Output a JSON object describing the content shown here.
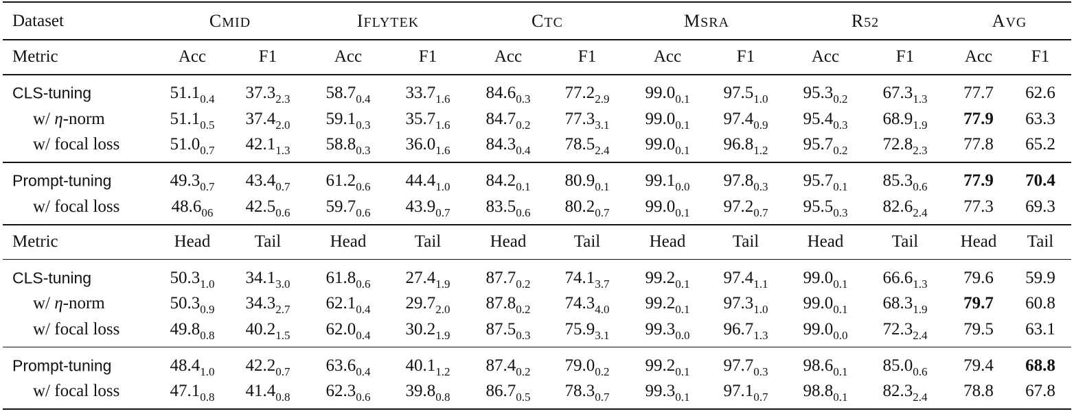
{
  "header": [
    "Dataset",
    "CMID",
    "IFLYTEK",
    "CTC",
    "MSRA",
    "R52",
    "AVG"
  ],
  "sections": [
    {
      "metric": [
        "Metric",
        "Acc",
        "F1",
        "Acc",
        "F1",
        "Acc",
        "F1",
        "Acc",
        "F1",
        "Acc",
        "F1",
        "Acc",
        "F1"
      ],
      "groups": [
        [
          {
            "label": "CLS-tuning",
            "cells": [
              [
                "51.1",
                "0.4"
              ],
              [
                "37.3",
                "2.3"
              ],
              [
                "58.7",
                "0.4"
              ],
              [
                "33.7",
                "1.6"
              ],
              [
                "84.6",
                "0.3"
              ],
              [
                "77.2",
                "2.9"
              ],
              [
                "99.0",
                "0.1"
              ],
              [
                "97.5",
                "1.0"
              ],
              [
                "95.3",
                "0.2"
              ],
              [
                "67.3",
                "1.3"
              ],
              [
                "77.7"
              ],
              [
                "62.6"
              ]
            ],
            "bold": []
          },
          {
            "label": "w/ η-norm",
            "cells": [
              [
                "51.1",
                "0.5"
              ],
              [
                "37.4",
                "2.0"
              ],
              [
                "59.1",
                "0.3"
              ],
              [
                "35.7",
                "1.6"
              ],
              [
                "84.7",
                "0.2"
              ],
              [
                "77.3",
                "3.1"
              ],
              [
                "99.0",
                "0.1"
              ],
              [
                "97.4",
                "0.9"
              ],
              [
                "95.4",
                "0.3"
              ],
              [
                "68.9",
                "1.9"
              ],
              [
                "77.9"
              ],
              [
                "63.3"
              ]
            ],
            "bold": [
              10
            ]
          },
          {
            "label": "w/ focal loss",
            "cells": [
              [
                "51.0",
                "0.7"
              ],
              [
                "42.1",
                "1.3"
              ],
              [
                "58.8",
                "0.3"
              ],
              [
                "36.0",
                "1.6"
              ],
              [
                "84.3",
                "0.4"
              ],
              [
                "78.5",
                "2.4"
              ],
              [
                "99.0",
                "0.1"
              ],
              [
                "96.8",
                "1.2"
              ],
              [
                "95.7",
                "0.2"
              ],
              [
                "72.8",
                "2.3"
              ],
              [
                "77.8"
              ],
              [
                "65.2"
              ]
            ],
            "bold": []
          }
        ],
        [
          {
            "label": "Prompt-tuning",
            "cells": [
              [
                "49.3",
                "0.7"
              ],
              [
                "43.4",
                "0.7"
              ],
              [
                "61.2",
                "0.6"
              ],
              [
                "44.4",
                "1.0"
              ],
              [
                "84.2",
                "0.1"
              ],
              [
                "80.9",
                "0.1"
              ],
              [
                "99.1",
                "0.0"
              ],
              [
                "97.8",
                "0.3"
              ],
              [
                "95.7",
                "0.1"
              ],
              [
                "85.3",
                "0.6"
              ],
              [
                "77.9"
              ],
              [
                "70.4"
              ]
            ],
            "bold": [
              10,
              11
            ]
          },
          {
            "label": "w/ focal loss",
            "cells": [
              [
                "48.6",
                "06"
              ],
              [
                "42.5",
                "0.6"
              ],
              [
                "59.7",
                "0.6"
              ],
              [
                "43.9",
                "0.7"
              ],
              [
                "83.5",
                "0.6"
              ],
              [
                "80.2",
                "0.7"
              ],
              [
                "99.0",
                "0.1"
              ],
              [
                "97.2",
                "0.7"
              ],
              [
                "95.5",
                "0.3"
              ],
              [
                "82.6",
                "2.4"
              ],
              [
                "77.3"
              ],
              [
                "69.3"
              ]
            ],
            "bold": []
          }
        ]
      ]
    },
    {
      "metric": [
        "Metric",
        "Head",
        "Tail",
        "Head",
        "Tail",
        "Head",
        "Tail",
        "Head",
        "Tail",
        "Head",
        "Tail",
        "Head",
        "Tail"
      ],
      "groups": [
        [
          {
            "label": "CLS-tuning",
            "cells": [
              [
                "50.3",
                "1.0"
              ],
              [
                "34.1",
                "3.0"
              ],
              [
                "61.8",
                "0.6"
              ],
              [
                "27.4",
                "1.9"
              ],
              [
                "87.7",
                "0.2"
              ],
              [
                "74.1",
                "3.7"
              ],
              [
                "99.2",
                "0.1"
              ],
              [
                "97.4",
                "1.1"
              ],
              [
                "99.0",
                "0.1"
              ],
              [
                "66.6",
                "1.3"
              ],
              [
                "79.6"
              ],
              [
                "59.9"
              ]
            ],
            "bold": []
          },
          {
            "label": "w/ η-norm",
            "cells": [
              [
                "50.3",
                "0.9"
              ],
              [
                "34.3",
                "2.7"
              ],
              [
                "62.1",
                "0.4"
              ],
              [
                "29.7",
                "2.0"
              ],
              [
                "87.8",
                "0.2"
              ],
              [
                "74.3",
                "4.0"
              ],
              [
                "99.2",
                "0.1"
              ],
              [
                "97.3",
                "1.0"
              ],
              [
                "99.0",
                "0.1"
              ],
              [
                "68.3",
                "1.9"
              ],
              [
                "79.7"
              ],
              [
                "60.8"
              ]
            ],
            "bold": [
              10
            ]
          },
          {
            "label": "w/ focal loss",
            "cells": [
              [
                "49.8",
                "0.8"
              ],
              [
                "40.2",
                "1.5"
              ],
              [
                "62.0",
                "0.4"
              ],
              [
                "30.2",
                "1.9"
              ],
              [
                "87.5",
                "0.3"
              ],
              [
                "75.9",
                "3.1"
              ],
              [
                "99.3",
                "0.0"
              ],
              [
                "96.7",
                "1.3"
              ],
              [
                "99.0",
                "0.0"
              ],
              [
                "72.3",
                "2.4"
              ],
              [
                "79.5"
              ],
              [
                "63.1"
              ]
            ],
            "bold": []
          }
        ],
        [
          {
            "label": "Prompt-tuning",
            "cells": [
              [
                "48.4",
                "1.0"
              ],
              [
                "42.2",
                "0.7"
              ],
              [
                "63.6",
                "0.4"
              ],
              [
                "40.1",
                "1.2"
              ],
              [
                "87.4",
                "0.2"
              ],
              [
                "79.0",
                "0.2"
              ],
              [
                "99.2",
                "0.1"
              ],
              [
                "97.7",
                "0.3"
              ],
              [
                "98.6",
                "0.1"
              ],
              [
                "85.0",
                "0.6"
              ],
              [
                "79.4"
              ],
              [
                "68.8"
              ]
            ],
            "bold": [
              11
            ]
          },
          {
            "label": "w/ focal loss",
            "cells": [
              [
                "47.1",
                "0.8"
              ],
              [
                "41.4",
                "0.8"
              ],
              [
                "62.3",
                "0.6"
              ],
              [
                "39.8",
                "0.8"
              ],
              [
                "86.7",
                "0.5"
              ],
              [
                "78.3",
                "0.7"
              ],
              [
                "99.3",
                "0.1"
              ],
              [
                "97.1",
                "0.7"
              ],
              [
                "98.8",
                "0.1"
              ],
              [
                "82.3",
                "2.4"
              ],
              [
                "78.8"
              ],
              [
                "67.8"
              ]
            ],
            "bold": []
          }
        ]
      ]
    }
  ]
}
